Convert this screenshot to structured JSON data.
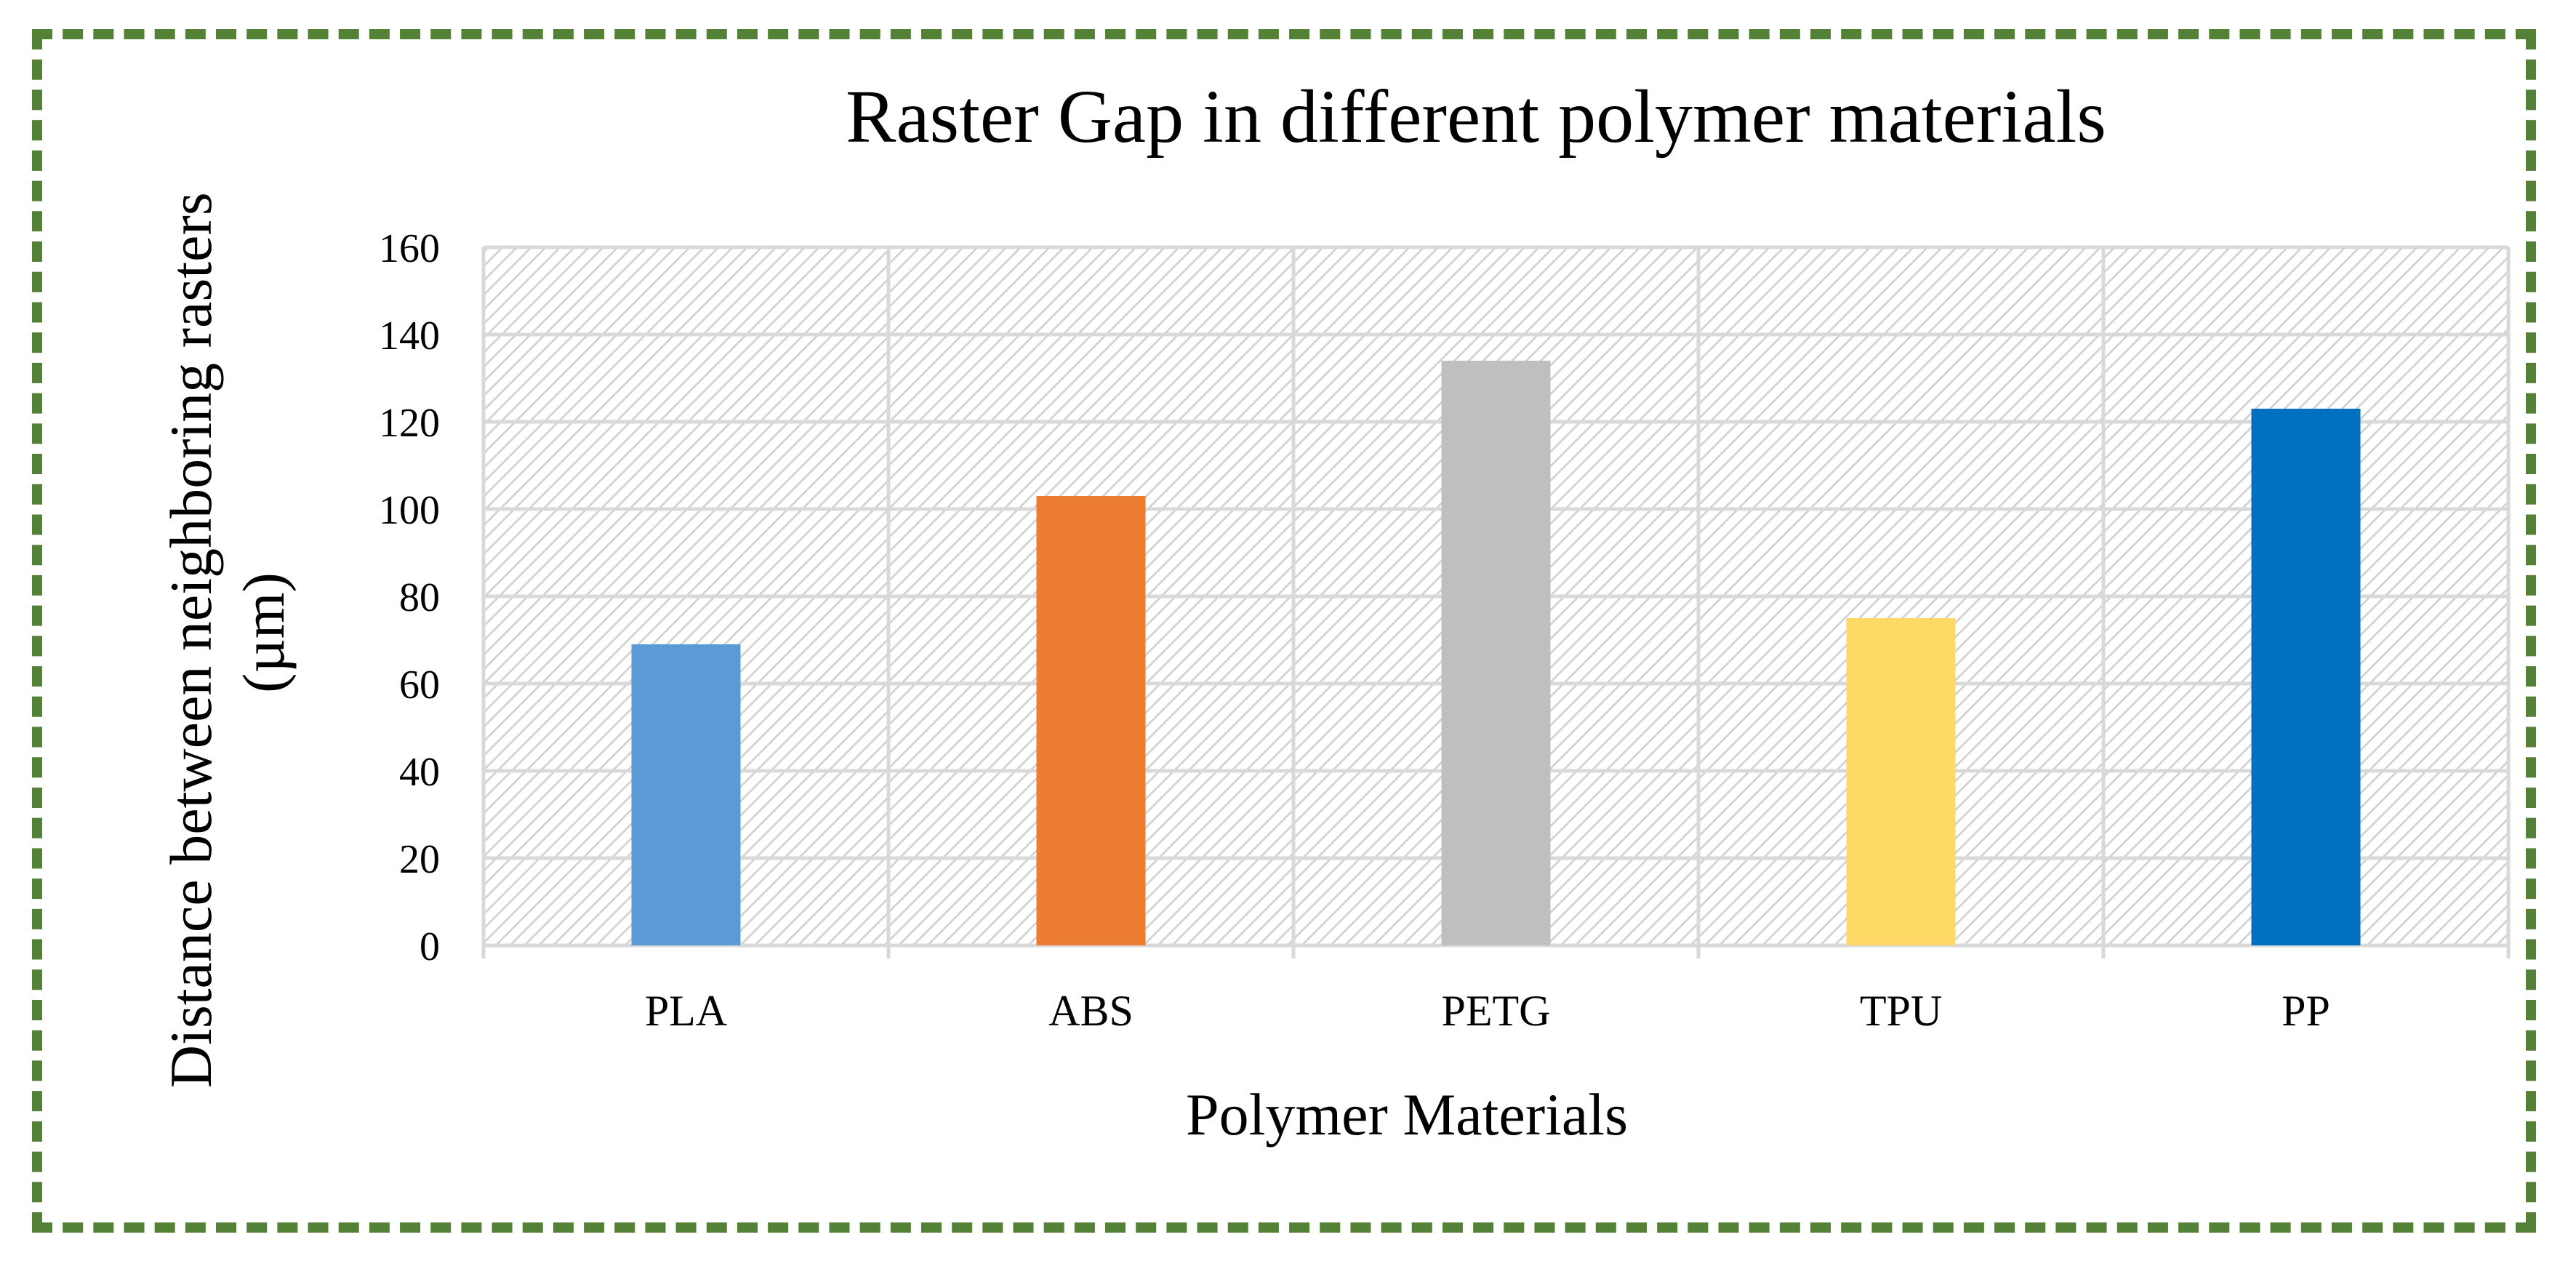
{
  "chart_data": {
    "type": "bar",
    "title": "Raster Gap in different polymer materials",
    "xlabel": "Polymer Materials",
    "ylabel": [
      "Distance between neighboring rasters",
      "(µm)"
    ],
    "categories": [
      "PLA",
      "ABS",
      "PETG",
      "TPU",
      "PP"
    ],
    "values": [
      69,
      103,
      134,
      75,
      123
    ],
    "colors": [
      "#5b9bd5",
      "#ed7d31",
      "#bfbfbf",
      "#ffd966",
      "#0070c0"
    ],
    "ylim": [
      0,
      160
    ],
    "yticks": [
      0,
      20,
      40,
      60,
      80,
      100,
      120,
      140,
      160
    ],
    "grid": true,
    "border_color": "#538135",
    "plot_background": "hatched"
  }
}
